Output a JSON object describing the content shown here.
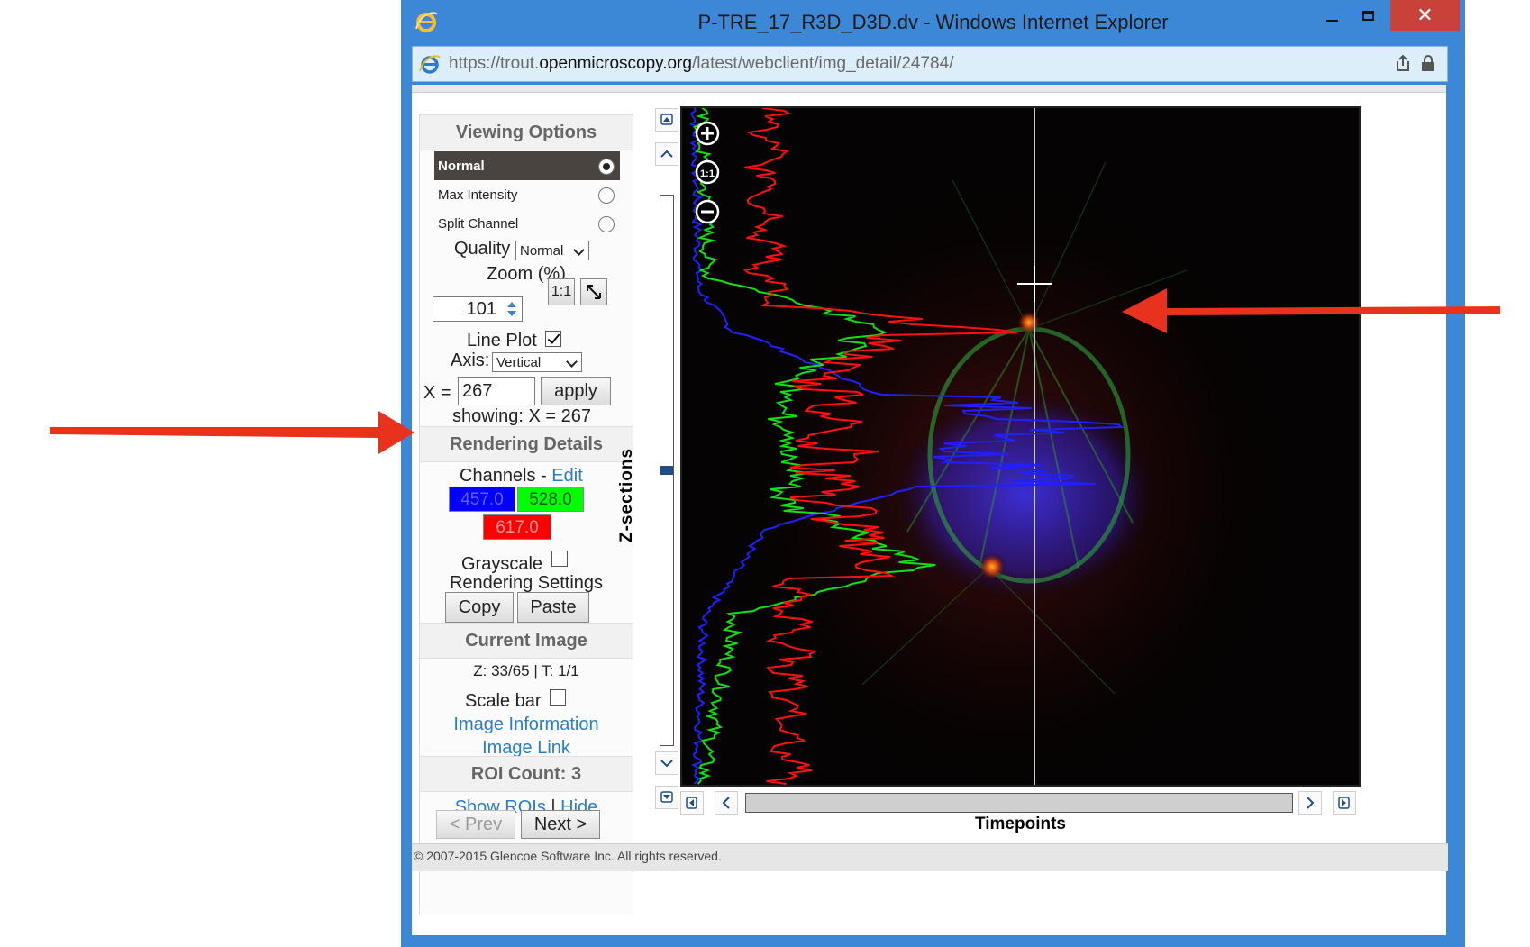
{
  "window": {
    "title": "P-TRE_17_R3D_D3D.dv - Windows Internet Explorer",
    "close_glyph": "✕",
    "url_prefix": "https://trout.",
    "url_domain": "openmicroscopy.org",
    "url_path": "/latest/webclient/img_detail/24784/"
  },
  "viewing_options": {
    "header": "Viewing Options",
    "modes": [
      {
        "label": "Normal",
        "selected": true
      },
      {
        "label": "Max Intensity",
        "selected": false
      },
      {
        "label": "Split Channel",
        "selected": false
      }
    ],
    "quality_label": "Quality",
    "quality_value": "Normal",
    "zoom_label": "Zoom (%)",
    "zoom_value": "101",
    "zoom_1to1": "1:1",
    "line_plot_label": "Line Plot",
    "line_plot_checked": true,
    "axis_label": "Axis:",
    "axis_value": "Vertical",
    "x_label": "X =",
    "x_value": "267",
    "apply_label": "apply",
    "showing_text": "showing: X = 267"
  },
  "rendering": {
    "header": "Rendering Details",
    "channels_label": "Channels -",
    "edit_label": "Edit",
    "channels": [
      {
        "label": "457.0",
        "color": "#0000ff",
        "text_color": "#6b5cff"
      },
      {
        "label": "528.0",
        "color": "#00ff00",
        "text_color": "#0a5a0a"
      },
      {
        "label": "617.0",
        "color": "#ff0000",
        "text_color": "#ff8080"
      }
    ],
    "grayscale_label": "Grayscale",
    "grayscale_checked": false,
    "settings_label": "Rendering Settings",
    "copy_label": "Copy",
    "paste_label": "Paste"
  },
  "current_image": {
    "header": "Current Image",
    "zt_text": "Z: 33/65 | T: 1/1",
    "scalebar_label": "Scale bar",
    "scalebar_checked": false,
    "info_link": "Image Information",
    "image_link": "Image Link"
  },
  "roi": {
    "header": "ROI Count: 3",
    "show_label": "Show ROIs",
    "separator": "|",
    "hide_label": "Hide",
    "prev_label": "< Prev",
    "next_label": "Next >"
  },
  "viewer": {
    "zsections_label": "Z-sections",
    "timepoints_label": "Timepoints",
    "zoom_in_glyph": "+",
    "zoom_reset_glyph": "1:1",
    "zoom_out_glyph": "−"
  },
  "footer": {
    "copyright": "© 2007-2015 Glencoe Software Inc. All rights reserved."
  },
  "colors": {
    "window_frame": "#3c87d6",
    "annotation_arrow": "#e8321e",
    "link": "#2a7ec8"
  }
}
